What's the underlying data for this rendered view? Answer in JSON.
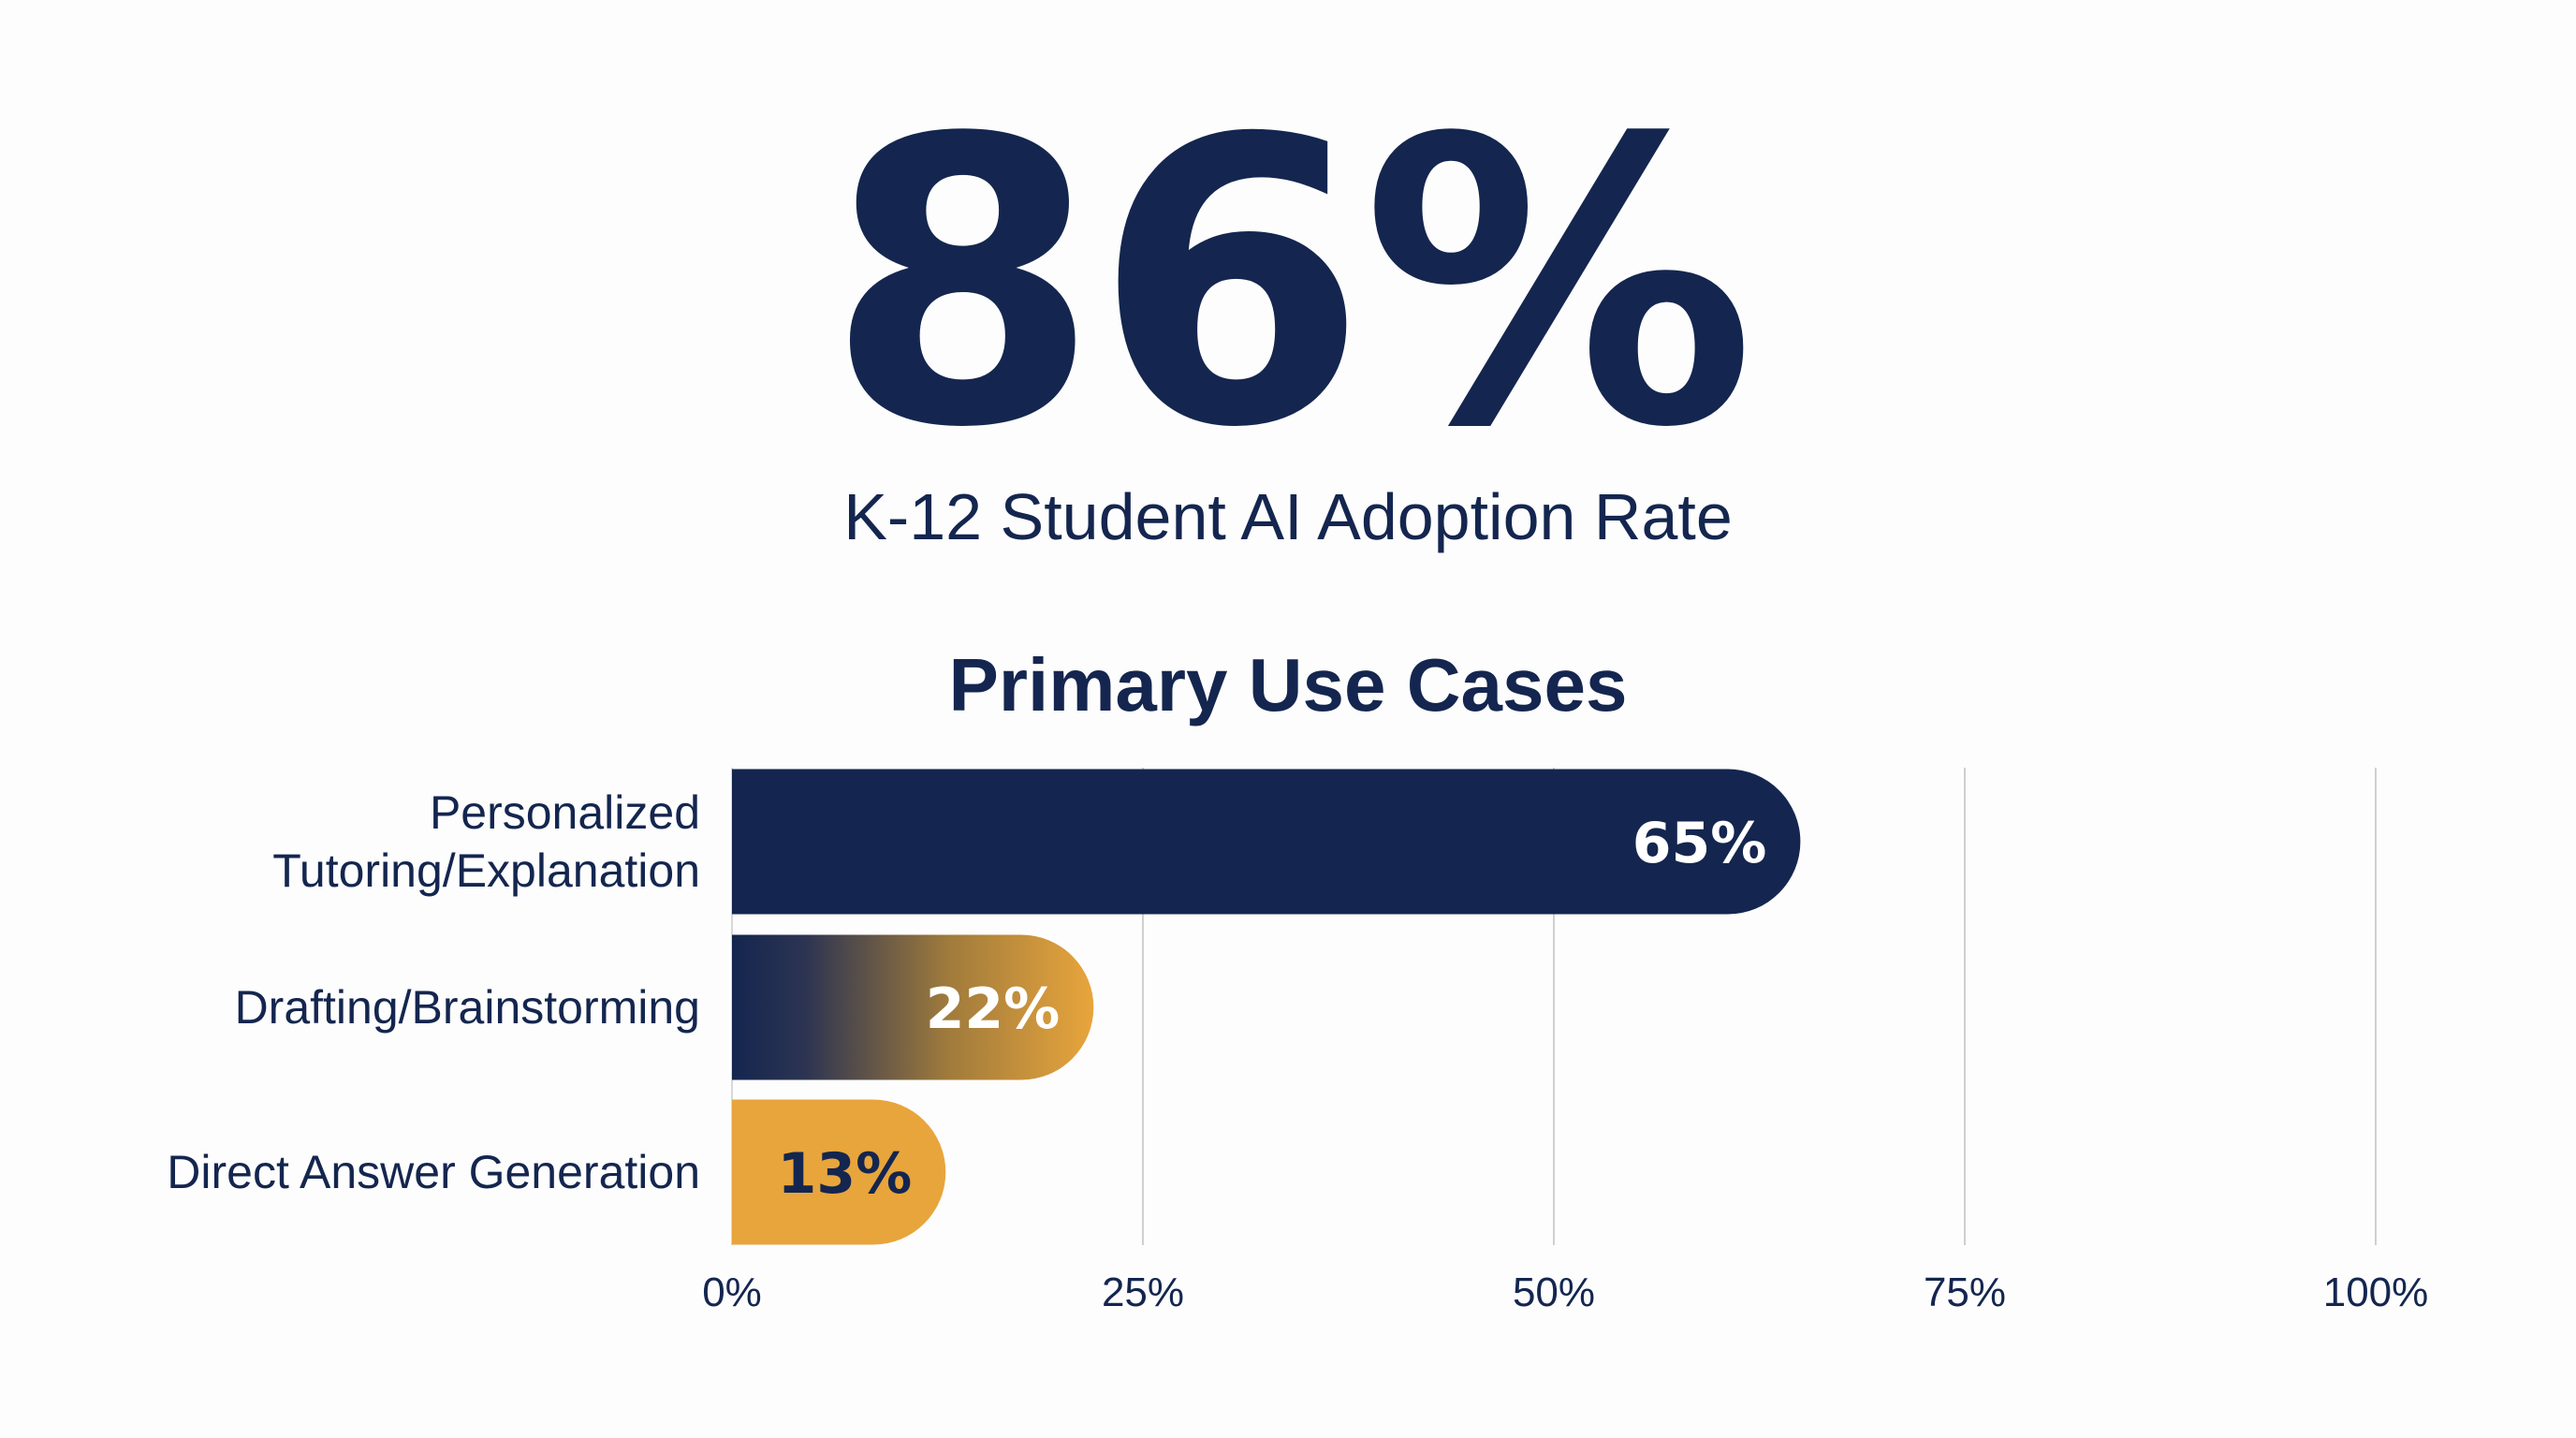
{
  "headline": {
    "stat": "86%",
    "label": "K-12 Student AI Adoption Rate"
  },
  "colors": {
    "navy": "#14264f",
    "gold": "#e8a53c",
    "grid": "#cfcfcf"
  },
  "chart_data": {
    "type": "bar",
    "orientation": "horizontal",
    "title": "Primary Use Cases",
    "categories": [
      [
        "Personalized",
        "Tutoring/Explanation"
      ],
      [
        "Drafting/Brainstorming"
      ],
      [
        "Direct Answer Generation"
      ]
    ],
    "values": [
      65,
      22,
      13
    ],
    "value_labels": [
      "65%",
      "22%",
      "13%"
    ],
    "bar_styles": [
      "navy",
      "navy-to-gold-gradient",
      "gold"
    ],
    "value_label_colors": [
      "#ffffff",
      "#ffffff",
      "#14264f"
    ],
    "xlim": [
      0,
      100
    ],
    "xticks": [
      0,
      25,
      50,
      75,
      100
    ],
    "xtick_labels": [
      "0%",
      "25%",
      "50%",
      "75%",
      "100%"
    ],
    "grid": true,
    "xlabel": "",
    "ylabel": ""
  }
}
